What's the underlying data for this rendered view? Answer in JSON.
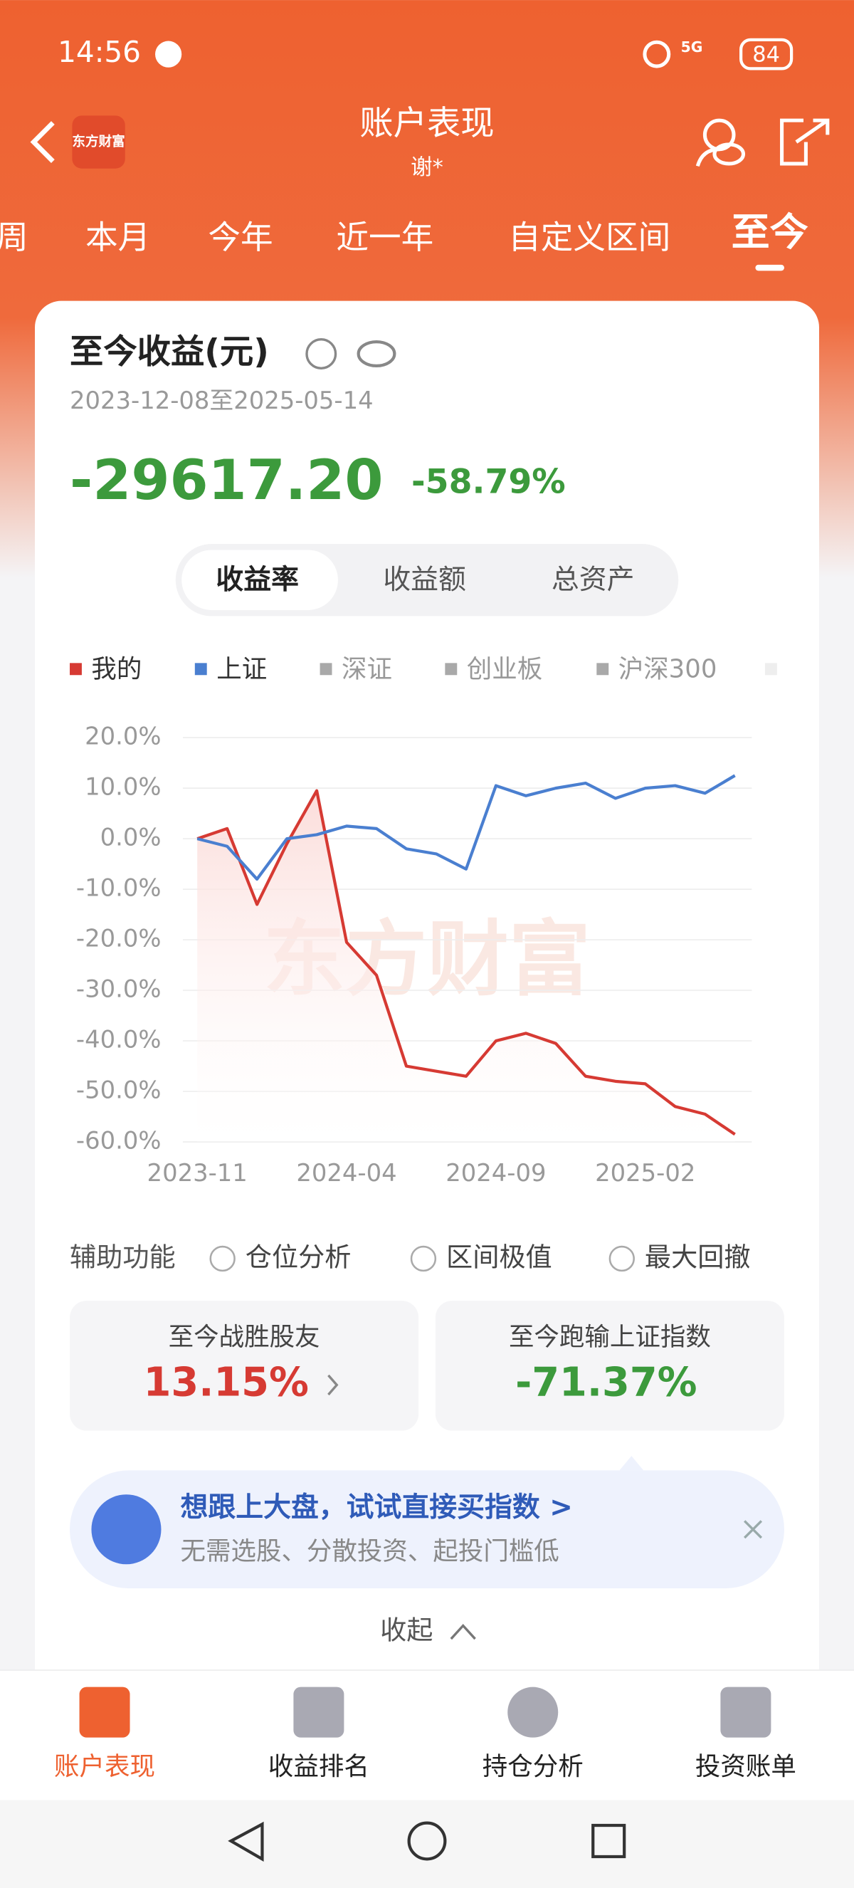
{
  "status_bar": {
    "time": "14:56",
    "network": "5G",
    "battery": "84"
  },
  "header": {
    "logo": "东方财富",
    "title": "账户表现",
    "subtitle": "谢*"
  },
  "tabs": [
    "周",
    "本月",
    "今年",
    "近一年",
    "自定义区间",
    "至今"
  ],
  "summary": {
    "title": "至今收益(元)",
    "date_range": "2023-12-08至2025-05-14",
    "amount": "-29617.20",
    "percent": "-58.79%"
  },
  "segments": [
    "收益率",
    "收益额",
    "总资产"
  ],
  "chart_data": {
    "type": "line",
    "watermark": "东方财富",
    "categories": [
      "2023-11",
      null,
      null,
      null,
      null,
      "2024-04",
      null,
      null,
      null,
      null,
      "2024-09",
      null,
      null,
      null,
      null,
      "2025-02",
      null,
      null,
      null
    ],
    "series": [
      {
        "name": "我的",
        "color": "#d63a33",
        "values": [
          0,
          2,
          -13,
          -1,
          9.5,
          -20.5,
          -27,
          -45,
          -46,
          -47,
          -40,
          -38.5,
          -40.5,
          -47,
          -48,
          -48.5,
          -53,
          -54.5,
          -58.5
        ]
      },
      {
        "name": "上证",
        "color": "#4a7fd0",
        "values": [
          0,
          -1.5,
          -8,
          0,
          0.8,
          2.5,
          2,
          -2,
          -3,
          -6,
          10.5,
          8.5,
          10,
          11,
          8,
          10,
          10.5,
          9,
          12.5
        ]
      }
    ],
    "inactive_series": [
      {
        "name": "深证",
        "color": "#a9a9a9"
      },
      {
        "name": "创业板",
        "color": "#a9a9a9"
      },
      {
        "name": "沪深300",
        "color": "#a9a9a9"
      }
    ],
    "ylim": [
      -60,
      20
    ],
    "yticks": [
      {
        "value": 20,
        "label": "20.0%"
      },
      {
        "value": 10,
        "label": "10.0%"
      },
      {
        "value": 0,
        "label": "0.0%"
      },
      {
        "value": -10,
        "label": "-10.0%"
      },
      {
        "value": -20,
        "label": "-20.0%"
      },
      {
        "value": -30,
        "label": "-30.0%"
      },
      {
        "value": -40,
        "label": "-40.0%"
      },
      {
        "value": -50,
        "label": "-50.0%"
      },
      {
        "value": -60,
        "label": "-60.0%"
      }
    ],
    "grid": true
  },
  "tools": {
    "label": "辅助功能",
    "options": [
      "仓位分析",
      "区间极值",
      "最大回撤"
    ]
  },
  "stats": [
    {
      "label": "至今战胜股友",
      "value": "13.15%"
    },
    {
      "label": "至今跑输上证指数",
      "value": "-71.37%"
    }
  ],
  "banner": {
    "title": "想跟上大盘，试试直接买指数 >",
    "text": "无需选股、分散投资、起投门槛低"
  },
  "collapse": "收起",
  "bottom_nav": [
    "账户表现",
    "收益排名",
    "持仓分析",
    "投资账单"
  ]
}
